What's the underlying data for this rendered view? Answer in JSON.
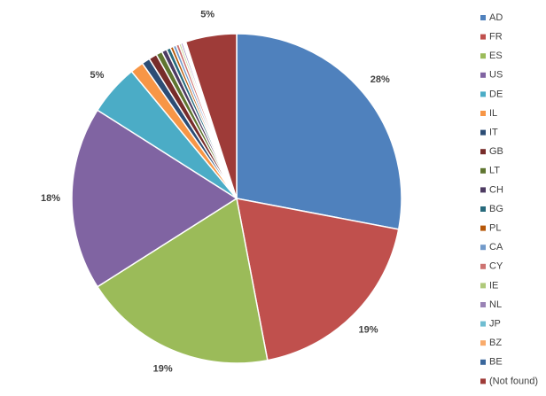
{
  "chart_data": {
    "type": "pie",
    "categories": [
      "AD",
      "FR",
      "ES",
      "US",
      "DE",
      "IL",
      "IT",
      "GB",
      "LT",
      "CH",
      "BG",
      "PL",
      "CA",
      "CY",
      "IE",
      "NL",
      "JP",
      "BZ",
      "BE",
      "(Not found)"
    ],
    "values": [
      28,
      19,
      19,
      18,
      5,
      1.3,
      0.8,
      0.8,
      0.6,
      0.5,
      0.4,
      0.3,
      0.3,
      0.3,
      0.2,
      0.2,
      0.1,
      0.1,
      0.1,
      5
    ],
    "value_labels": [
      "28%",
      "19%",
      "19%",
      "18%",
      "5%",
      null,
      null,
      null,
      null,
      null,
      null,
      null,
      null,
      null,
      null,
      null,
      null,
      null,
      null,
      "5%"
    ],
    "colors": [
      "#4f81bd",
      "#c0504d",
      "#9bbb59",
      "#8064a2",
      "#4bacc6",
      "#f79646",
      "#2c4d75",
      "#772c2a",
      "#5f7530",
      "#4d3b62",
      "#276a7c",
      "#b65708",
      "#729aca",
      "#cd7371",
      "#afc97a",
      "#9983b5",
      "#6fbdd1",
      "#f9ab6b",
      "#3a679c",
      "#9e3b38"
    ],
    "legend": "right"
  }
}
